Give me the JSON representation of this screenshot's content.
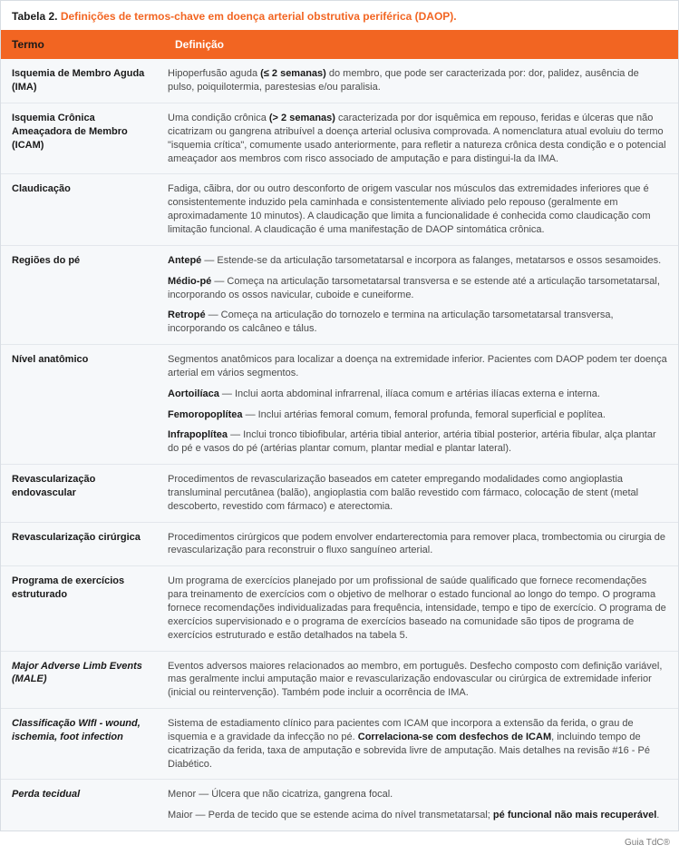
{
  "caption": {
    "label": "Tabela 2.",
    "title": "Definições de termos-chave em doença arterial obstrutiva periférica (DAOP)."
  },
  "header": {
    "term": "Termo",
    "def": "Definição"
  },
  "rows": [
    {
      "term": "Isquemia de Membro Aguda (IMA)",
      "defs": [
        "Hipoperfusão aguda <b>(≤ 2 semanas)</b> do membro, que pode ser caracterizada por: dor, palidez, ausência de pulso, poiquilotermia, parestesias e/ou paralisia."
      ]
    },
    {
      "term": "Isquemia Crônica Ameaçadora de Membro (ICAM)",
      "defs": [
        "Uma condição crônica <b>(> 2 semanas)</b> caracterizada por dor isquêmica em repouso, feridas e úlceras que não cicatrizam ou gangrena atribuível a doença arterial oclusiva comprovada. A nomenclatura atual evoluiu do termo \"isquemia crítica\", comumente usado anteriormente, para refletir a natureza crônica desta condição e o potencial ameaçador aos membros com risco associado de amputação e para distingui-la da IMA."
      ]
    },
    {
      "term": "Claudicação",
      "defs": [
        "Fadiga, cãibra, dor ou outro desconforto de origem vascular nos músculos das extremidades inferiores que é consistentemente induzido pela caminhada e consistentemente aliviado pelo repouso (geralmente em aproximadamente 10 minutos). A claudicação que limita a funcionalidade é conhecida como claudicação com limitação funcional. A claudicação é uma manifestação de DAOP sintomática crônica."
      ]
    },
    {
      "term": "Regiões do pé",
      "defs": [
        "<b>Antepé</b> — Estende-se da articulação tarsometatarsal e incorpora as falanges, metatarsos e ossos sesamoides.",
        "<b>Médio-pé</b> — Começa na articulação tarsometatarsal transversa e se estende até a articulação tarsometatarsal, incorporando os ossos navicular, cuboide e cuneiforme.",
        "<b>Retropé</b> — Começa na articulação do tornozelo e termina na articulação tarsometatarsal transversa, incorporando os calcâneo e tálus."
      ]
    },
    {
      "term": "Nível anatômico",
      "defs": [
        "Segmentos anatômicos para localizar a doença na extremidade inferior. Pacientes com DAOP podem ter doença arterial em vários segmentos.",
        "<b>Aortoilíaca</b> — Inclui aorta abdominal infrarrenal, ilíaca comum e artérias ilíacas externa e interna.",
        "<b>Femoropoplítea</b> — Inclui artérias femoral comum, femoral profunda, femoral superficial e poplítea.",
        "<b>Infrapoplítea</b> — Inclui tronco tibiofibular, artéria tibial anterior, artéria tibial posterior, artéria fibular, alça plantar do pé e vasos do pé (artérias plantar comum, plantar medial e plantar lateral)."
      ]
    },
    {
      "term": "Revascularização endovascular",
      "defs": [
        "Procedimentos de revascularização baseados em cateter empregando modalidades como angioplastia transluminal percutânea (balão), angioplastia com balão revestido com fármaco, colocação de stent (metal descoberto, revestido com fármaco) e aterectomia."
      ]
    },
    {
      "term": "Revascularização cirúrgica",
      "defs": [
        "Procedimentos cirúrgicos que podem envolver endarterectomia para remover placa, trombectomia ou cirurgia de revascularização para reconstruir o fluxo sanguíneo arterial."
      ]
    },
    {
      "term": "Programa de exercícios estruturado",
      "defs": [
        "Um programa de exercícios planejado por um profissional de saúde qualificado que fornece recomendações para treinamento de exercícios com o objetivo de melhorar o estado funcional ao longo do tempo. O programa fornece recomendações individualizadas para frequência, intensidade, tempo e tipo de exercício. O programa de exercícios supervisionado e o programa de exercícios baseado na comunidade são tipos de programa de exercícios estruturado e estão detalhados na tabela 5."
      ]
    },
    {
      "term": "Major Adverse Limb Events (MALE)",
      "italic": true,
      "defs": [
        "Eventos adversos maiores relacionados ao membro, em português. Desfecho composto com definição variável, mas geralmente inclui amputação maior e revascularização endovascular ou cirúrgica de extremidade inferior (inicial ou reintervenção). Também pode incluir a ocorrência de IMA."
      ]
    },
    {
      "term": "Classificação WIfI - wound, ischemia, foot infection",
      "italic": true,
      "defs": [
        "Sistema de estadiamento clínico para pacientes com ICAM que incorpora a extensão da ferida, o grau de isquemia e a gravidade da infecção no pé. <b>Correlaciona-se com desfechos de ICAM</b>, incluindo tempo de cicatrização da ferida, taxa de amputação e sobrevida livre de amputação. Mais detalhes na revisão #16 - Pé Diabético."
      ]
    },
    {
      "term": "Perda tecidual",
      "italic": true,
      "defs": [
        "Menor — Úlcera que não cicatriza, gangrena focal.",
        "Maior — Perda de tecido que se estende acima do nível transmetatarsal; <b>pé funcional não mais recuperável</b>."
      ]
    }
  ],
  "footer": "Guia TdC®",
  "colors": {
    "accent": "#f26522",
    "row_bg": "#f6f8fa",
    "border": "#e3e7ec",
    "text": "#4a4a4a",
    "bold_text": "#1a1a1a"
  }
}
